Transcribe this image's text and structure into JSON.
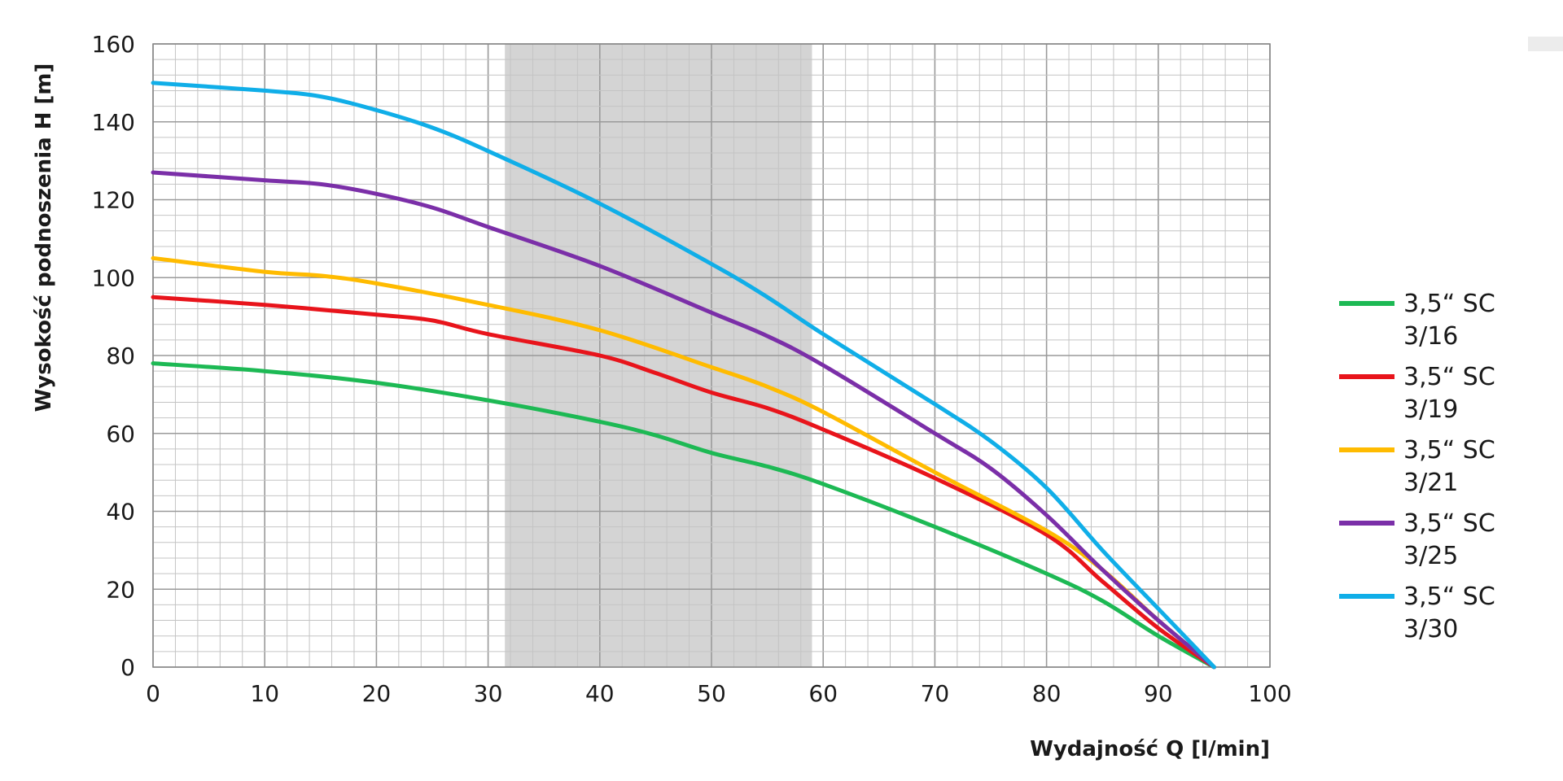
{
  "chart_data": {
    "type": "line",
    "xlabel": "Wydajność Q [l/min]",
    "ylabel": "Wysokość podnoszenia H [m]",
    "xlim": [
      0,
      100
    ],
    "ylim": [
      0,
      160
    ],
    "x_ticks": [
      0,
      10,
      20,
      30,
      40,
      50,
      60,
      70,
      80,
      90,
      100
    ],
    "y_ticks": [
      0,
      20,
      40,
      60,
      80,
      100,
      120,
      140,
      160
    ],
    "grid": true,
    "highlight_band": {
      "x_from": 31.5,
      "x_to": 59,
      "color": "#d4d4d4"
    },
    "legend_position": "right",
    "series": [
      {
        "name_line1": "3,5“ SC",
        "name_line2": "3/16",
        "color": "#1db954",
        "points": [
          [
            0,
            78
          ],
          [
            10,
            76
          ],
          [
            20,
            73
          ],
          [
            30,
            68.5
          ],
          [
            40,
            63
          ],
          [
            45,
            59.5
          ],
          [
            50,
            55
          ],
          [
            55,
            51.5
          ],
          [
            60,
            47
          ],
          [
            70,
            36
          ],
          [
            80,
            24
          ],
          [
            85,
            17
          ],
          [
            90,
            8
          ],
          [
            95,
            0
          ]
        ]
      },
      {
        "name_line1": "3,5“ SC",
        "name_line2": "3/19",
        "color": "#e8141b",
        "points": [
          [
            0,
            95
          ],
          [
            10,
            93
          ],
          [
            20,
            90.5
          ],
          [
            25,
            89
          ],
          [
            30,
            85.5
          ],
          [
            40,
            80
          ],
          [
            45,
            75.5
          ],
          [
            50,
            70.5
          ],
          [
            55,
            66.5
          ],
          [
            60,
            61
          ],
          [
            70,
            48.5
          ],
          [
            80,
            34
          ],
          [
            85,
            22
          ],
          [
            90,
            10
          ],
          [
            95,
            0
          ]
        ]
      },
      {
        "name_line1": "3,5“ SC",
        "name_line2": "3/21",
        "color": "#ffbb00",
        "points": [
          [
            0,
            105
          ],
          [
            10,
            101.5
          ],
          [
            15,
            100.5
          ],
          [
            20,
            98.5
          ],
          [
            30,
            93
          ],
          [
            40,
            86.5
          ],
          [
            50,
            77
          ],
          [
            55,
            72
          ],
          [
            60,
            65.5
          ],
          [
            70,
            50
          ],
          [
            80,
            35
          ],
          [
            85,
            25
          ],
          [
            90,
            12
          ],
          [
            95,
            0
          ]
        ]
      },
      {
        "name_line1": "3,5“ SC",
        "name_line2": "3/25",
        "color": "#7b2fa8",
        "points": [
          [
            0,
            127
          ],
          [
            10,
            125
          ],
          [
            15,
            124
          ],
          [
            20,
            121.5
          ],
          [
            25,
            118
          ],
          [
            30,
            113
          ],
          [
            40,
            103
          ],
          [
            50,
            91
          ],
          [
            55,
            85
          ],
          [
            60,
            77.5
          ],
          [
            70,
            60
          ],
          [
            75,
            51
          ],
          [
            80,
            39
          ],
          [
            85,
            25
          ],
          [
            90,
            12
          ],
          [
            95,
            0
          ]
        ]
      },
      {
        "name_line1": "3,5“ SC",
        "name_line2": "3/30",
        "color": "#10aee8",
        "points": [
          [
            0,
            150
          ],
          [
            10,
            148
          ],
          [
            15,
            146.5
          ],
          [
            20,
            143
          ],
          [
            25,
            138.5
          ],
          [
            30,
            132.5
          ],
          [
            40,
            119
          ],
          [
            50,
            103.5
          ],
          [
            55,
            95
          ],
          [
            60,
            85.5
          ],
          [
            70,
            67.5
          ],
          [
            75,
            58
          ],
          [
            80,
            46
          ],
          [
            85,
            30
          ],
          [
            90,
            15
          ],
          [
            95,
            0
          ]
        ]
      }
    ]
  }
}
